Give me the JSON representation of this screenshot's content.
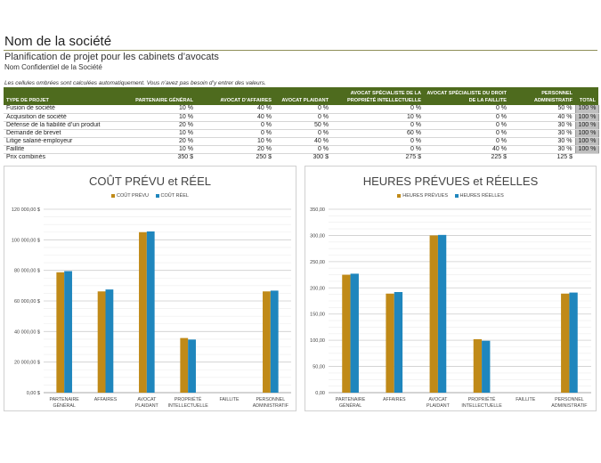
{
  "header": {
    "company": "Nom de la société",
    "subtitle": "Planification de projet pour les cabinets d’avocats",
    "confidential": "Nom Confidentiel de la Société",
    "note": "Les cellules ombrées sont calculées automatiquement. Vous n’avez pas besoin d’y entrer des valeurs."
  },
  "table": {
    "headers": [
      "TYPE DE PROJET",
      "PARTENAIRE GÉNÉRAL",
      "AVOCAT D’AFFAIRES",
      "AVOCAT PLAIDANT",
      "AVOCAT SPÉCIALISTE DE LA PROPRIÉTÉ INTELLECTUELLE",
      "AVOCAT SPÉCIALISTE DU DROIT DE LA FAILLITE",
      "PERSONNEL ADMINISTRATIF",
      "TOTAL"
    ],
    "rows": [
      [
        "Fusion de société",
        "10 %",
        "40 %",
        "0 %",
        "0 %",
        "0 %",
        "50 %",
        "100 %"
      ],
      [
        "Acquisition de société",
        "10 %",
        "40 %",
        "0 %",
        "10 %",
        "0 %",
        "40 %",
        "100 %"
      ],
      [
        "Défense de la fiabilité d’un produit",
        "20 %",
        "0 %",
        "50 %",
        "0 %",
        "0 %",
        "30 %",
        "100 %"
      ],
      [
        "Demande de brevet",
        "10 %",
        "0 %",
        "0 %",
        "60 %",
        "0 %",
        "30 %",
        "100 %"
      ],
      [
        "Litige salarié-employeur",
        "20 %",
        "10 %",
        "40 %",
        "0 %",
        "0 %",
        "30 %",
        "100 %"
      ],
      [
        "Faillite",
        "10 %",
        "20 %",
        "0 %",
        "0 %",
        "40 %",
        "30 %",
        "100 %"
      ]
    ],
    "combined": [
      "Prix combinés",
      "350 $",
      "250 $",
      "300 $",
      "275 $",
      "225 $",
      "125 $",
      ""
    ]
  },
  "colors": {
    "planned": "#c08a18",
    "actual": "#1f86bd",
    "header_bg": "#4e6b1e",
    "total_bg": "#bfbfbf"
  },
  "chart_data": [
    {
      "type": "bar",
      "title": "COÛT PRÉVU et RÉEL",
      "categories": [
        [
          "PARTENAIRE",
          "GÉNÉRAL"
        ],
        [
          "AFFAIRES"
        ],
        [
          "AVOCAT",
          "PLAIDANT"
        ],
        [
          "PROPRIÉTÉ",
          "INTELLECTUELLE"
        ],
        [
          "FAILLITE"
        ],
        [
          "PERSONNEL",
          "ADMINISTRATIF"
        ]
      ],
      "series": [
        {
          "name": "COÛT PRÉVU",
          "values": [
            78750,
            66250,
            105000,
            35750,
            0,
            66250
          ]
        },
        {
          "name": "COÛT RÉEL",
          "values": [
            79500,
            67500,
            105500,
            34750,
            0,
            66750
          ]
        }
      ],
      "ylim": [
        0,
        120000
      ],
      "yticks": [
        0,
        20000,
        40000,
        60000,
        80000,
        100000,
        120000
      ],
      "ytick_labels": [
        "0,00 $",
        "20 000,00 $",
        "40 000,00 $",
        "60 000,00 $",
        "80 000,00 $",
        "100 000,00 $",
        "120 000,00 $"
      ],
      "grid": true,
      "legend": "top-center"
    },
    {
      "type": "bar",
      "title": "HEURES PRÉVUES et RÉELLES",
      "categories": [
        [
          "PARTENAIRE",
          "GÉNÉRAL"
        ],
        [
          "AFFAIRES"
        ],
        [
          "AVOCAT",
          "PLAIDANT"
        ],
        [
          "PROPRIÉTÉ",
          "INTELLECTUELLE"
        ],
        [
          "FAILLITE"
        ],
        [
          "PERSONNEL",
          "ADMINISTRATIF"
        ]
      ],
      "series": [
        {
          "name": "HEURES PRÉVUES",
          "values": [
            225,
            189,
            300,
            102,
            0,
            189
          ]
        },
        {
          "name": "HEURES RÉELLES",
          "values": [
            227,
            192,
            301,
            99,
            0,
            191
          ]
        }
      ],
      "ylim": [
        0,
        350
      ],
      "yticks": [
        0,
        50,
        100,
        150,
        200,
        250,
        300,
        350
      ],
      "ytick_labels": [
        "0,00",
        "50,00",
        "100,00",
        "150,00",
        "200,00",
        "250,00",
        "300,00",
        "350,00"
      ],
      "grid": true,
      "legend": "top-center"
    }
  ]
}
